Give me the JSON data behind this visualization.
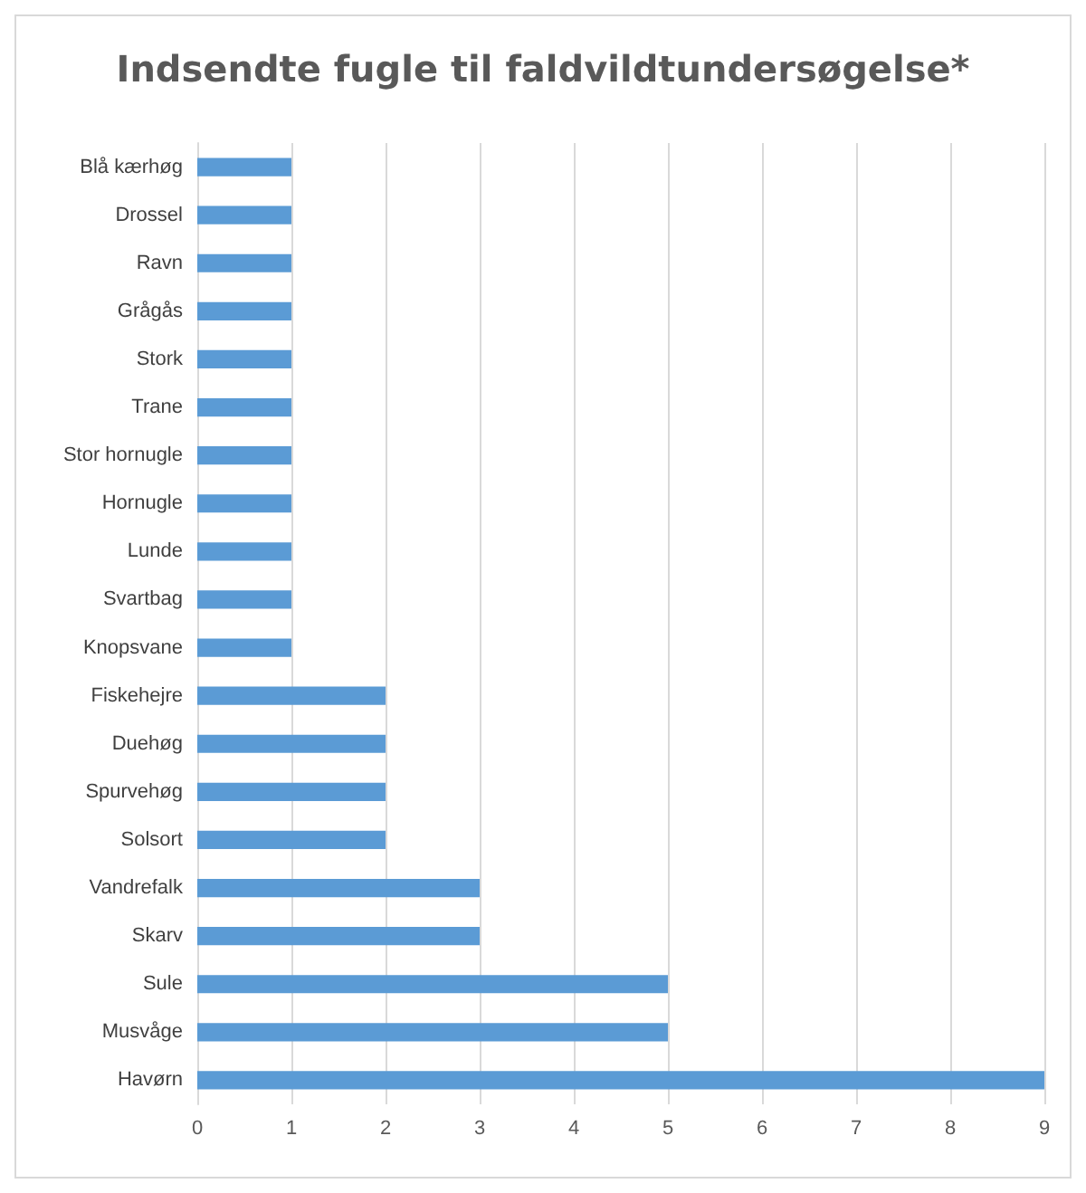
{
  "chart_data": {
    "type": "bar",
    "orientation": "horizontal",
    "title": "Indsendte fugle til faldvildtundersøgelse*",
    "categories": [
      "Blå kærhøg",
      "Drossel",
      "Ravn",
      "Grågås",
      "Stork",
      "Trane",
      "Stor hornugle",
      "Hornugle",
      "Lunde",
      "Svartbag",
      "Knopsvane",
      "Fiskehejre",
      "Duehøg",
      "Spurvehøg",
      "Solsort",
      "Vandrefalk",
      "Skarv",
      "Sule",
      "Musvåge",
      "Havørn"
    ],
    "values": [
      1,
      1,
      1,
      1,
      1,
      1,
      1,
      1,
      1,
      1,
      1,
      2,
      2,
      2,
      2,
      3,
      3,
      5,
      5,
      9
    ],
    "color": "#5b9bd5",
    "xlim": [
      0,
      9
    ],
    "xticks": [
      0,
      1,
      2,
      3,
      4,
      5,
      6,
      7,
      8,
      9
    ],
    "grid": "x"
  }
}
